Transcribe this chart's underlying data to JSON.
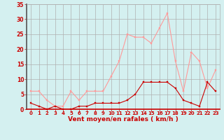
{
  "hours": [
    0,
    1,
    2,
    3,
    4,
    5,
    6,
    7,
    8,
    9,
    10,
    11,
    12,
    13,
    14,
    15,
    16,
    17,
    18,
    19,
    20,
    21,
    22,
    23
  ],
  "wind_avg": [
    2,
    1,
    0,
    1,
    0,
    0,
    1,
    1,
    2,
    2,
    2,
    2,
    3,
    5,
    9,
    9,
    9,
    9,
    7,
    3,
    2,
    1,
    9,
    6
  ],
  "wind_gust": [
    6,
    6,
    3,
    1,
    1,
    6,
    3,
    6,
    6,
    6,
    11,
    16,
    25,
    24,
    24,
    22,
    27,
    32,
    16,
    6,
    19,
    16,
    7,
    13
  ],
  "avg_color": "#cc0000",
  "gust_color": "#ff9999",
  "bg_color": "#d4f0f0",
  "grid_color": "#b0b0b0",
  "tick_color": "#cc0000",
  "xlabel": "Vent moyen/en rafales ( km/h )",
  "ylim": [
    0,
    35
  ],
  "yticks": [
    0,
    5,
    10,
    15,
    20,
    25,
    30,
    35
  ],
  "left_spine_color": "#555555",
  "bottom_spine_color": "#cc0000"
}
